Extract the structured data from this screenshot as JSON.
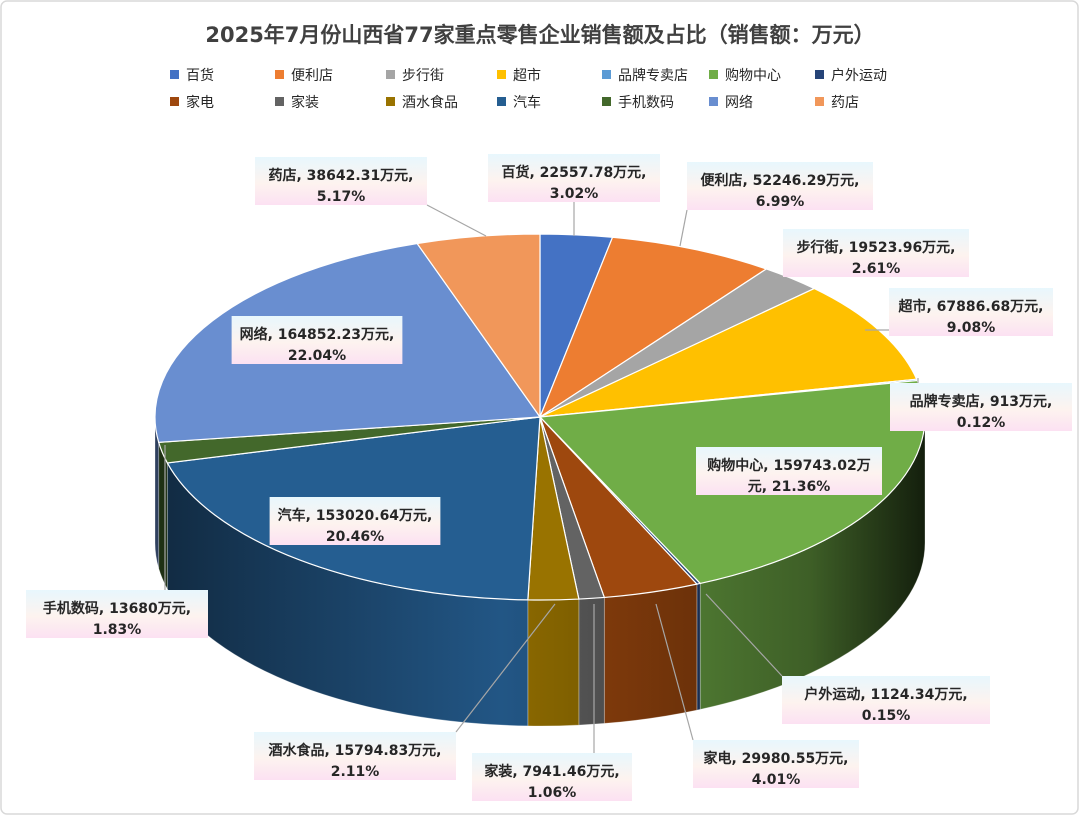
{
  "chart_data": {
    "type": "pie",
    "title": "2025年7月份山西省77家重点零售企业销售额及占比（销售额：万元）",
    "unit": "万元",
    "legend_position": "top",
    "slices": [
      {
        "name": "百货",
        "value": 22557.78,
        "percent": "3.02%",
        "color": "#4472C4",
        "label": [
          "百货, 22557.78万元,",
          "3.02%"
        ]
      },
      {
        "name": "便利店",
        "value": 52246.29,
        "percent": "6.99%",
        "color": "#ED7D31",
        "label": [
          "便利店, 52246.29万元,",
          "6.99%"
        ]
      },
      {
        "name": "步行街",
        "value": 19523.96,
        "percent": "2.61%",
        "color": "#A5A5A5",
        "label": [
          "步行街, 19523.96万元,",
          "2.61%"
        ]
      },
      {
        "name": "超市",
        "value": 67886.68,
        "percent": "9.08%",
        "color": "#FFC000",
        "label": [
          "超市, 67886.68万元,",
          "9.08%"
        ]
      },
      {
        "name": "品牌专卖店",
        "value": 913,
        "percent": "0.12%",
        "color": "#5B9BD5",
        "label": [
          "品牌专卖店, 913万元,",
          "0.12%"
        ]
      },
      {
        "name": "购物中心",
        "value": 159743.02,
        "percent": "21.36%",
        "color": "#70AD47",
        "label": [
          "购物中心, 159743.02万",
          "元, 21.36%"
        ]
      },
      {
        "name": "户外运动",
        "value": 1124.34,
        "percent": "0.15%",
        "color": "#264478",
        "label": [
          "户外运动, 1124.34万元,",
          "0.15%"
        ]
      },
      {
        "name": "家电",
        "value": 29980.55,
        "percent": "4.01%",
        "color": "#9E480E",
        "label": [
          "家电, 29980.55万元,",
          "4.01%"
        ]
      },
      {
        "name": "家装",
        "value": 7941.46,
        "percent": "1.06%",
        "color": "#636363",
        "label": [
          "家装, 7941.46万元,",
          "1.06%"
        ]
      },
      {
        "name": "酒水食品",
        "value": 15794.83,
        "percent": "2.11%",
        "color": "#997300",
        "label": [
          "酒水食品, 15794.83万元,",
          "2.11%"
        ]
      },
      {
        "name": "汽车",
        "value": 153020.64,
        "percent": "20.46%",
        "color": "#255E91",
        "label": [
          "汽车, 153020.64万元,",
          "20.46%"
        ]
      },
      {
        "name": "手机数码",
        "value": 13680,
        "percent": "1.83%",
        "color": "#43682B",
        "label": [
          "手机数码, 13680万元,",
          "1.83%"
        ]
      },
      {
        "name": "网络",
        "value": 164852.23,
        "percent": "22.04%",
        "color": "#698ED0",
        "label": [
          "网络, 164852.23万元,",
          "22.04%"
        ]
      },
      {
        "name": "药店",
        "value": 38642.31,
        "percent": "5.17%",
        "color": "#F1975A",
        "label": [
          "药店, 38642.31万元,",
          "5.17%"
        ]
      }
    ]
  }
}
